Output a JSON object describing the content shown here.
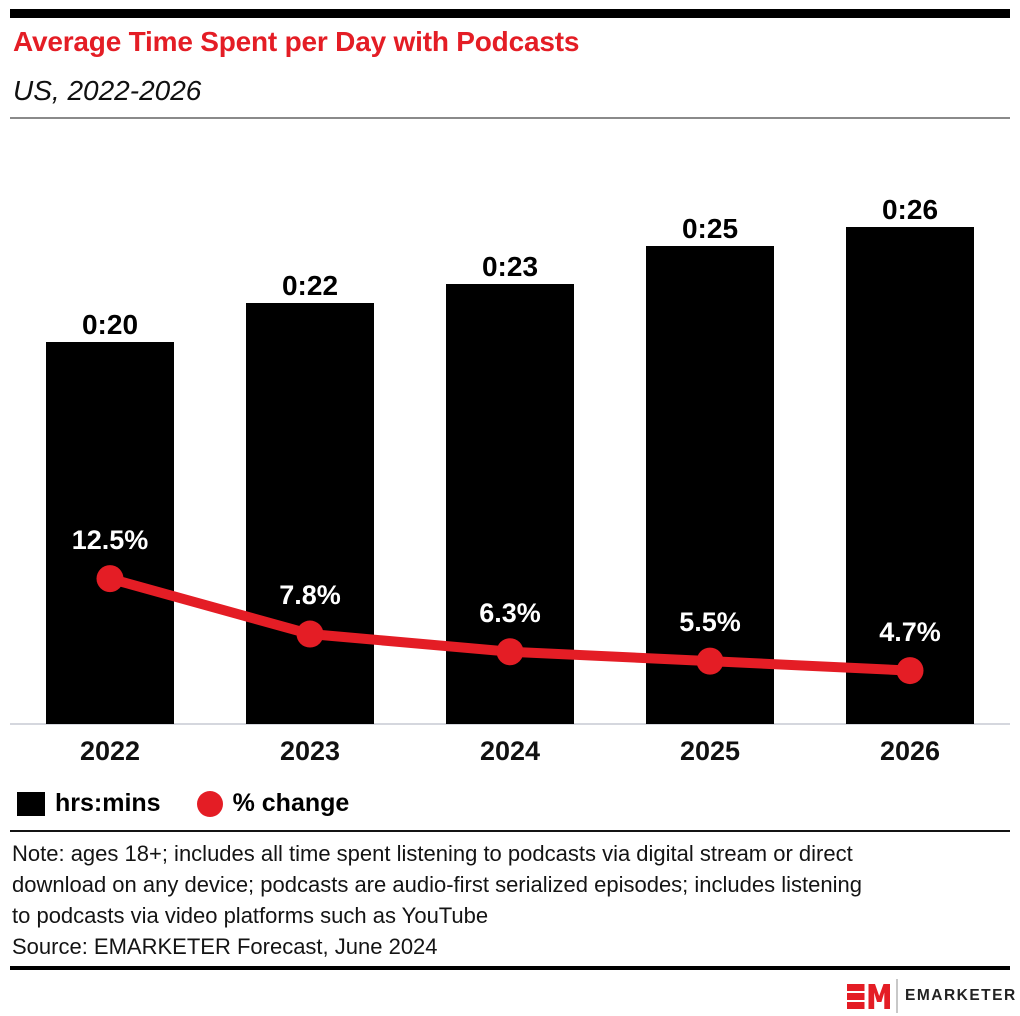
{
  "header": {
    "title": "Average Time Spent per Day with Podcasts",
    "subtitle": "US, 2022-2026"
  },
  "chart_data": {
    "type": "bar",
    "categories": [
      "2022",
      "2023",
      "2024",
      "2025",
      "2026"
    ],
    "series": [
      {
        "name": "hrs:mins",
        "type": "bar",
        "unit": "minutes",
        "values": [
          20,
          22,
          23,
          25,
          26
        ],
        "labels": [
          "0:20",
          "0:22",
          "0:23",
          "0:25",
          "0:26"
        ]
      },
      {
        "name": "% change",
        "type": "line",
        "unit": "percent",
        "values": [
          12.5,
          7.8,
          6.3,
          5.5,
          4.7
        ],
        "labels": [
          "12.5%",
          "7.8%",
          "6.3%",
          "5.5%",
          "4.7%"
        ]
      }
    ],
    "title": "Average Time Spent per Day with Podcasts",
    "subtitle": "US, 2022-2026",
    "xlabel": "",
    "ylabel": "",
    "ylim_minutes": [
      0,
      30
    ],
    "y2lim_percent": [
      0,
      49.5
    ],
    "grid": false,
    "legend_position": "bottom-left",
    "bar_label_position": "above-bar",
    "line_label_position": "above-point"
  },
  "legend": {
    "items": [
      {
        "label": "hrs:mins",
        "swatch": "square",
        "color": "#000000"
      },
      {
        "label": "% change",
        "swatch": "circle",
        "color": "#e41d25"
      }
    ]
  },
  "note": {
    "lines": [
      "Note: ages 18+; includes all time spent listening to podcasts via digital stream or direct",
      "download on any device; podcasts are audio-first serialized episodes; includes listening",
      "to podcasts via video platforms such as YouTube"
    ]
  },
  "source": {
    "text": "Source: EMARKETER Forecast, June 2024"
  },
  "footer": {
    "logo_monogram": "EM",
    "wordmark": "EMARKETER"
  },
  "colors": {
    "brand_red": "#e41d25",
    "bar_black": "#000000",
    "percent_label": "#ffffff",
    "axis_line": "#d5d7de",
    "text": "#111111",
    "wordmark": "#232323"
  }
}
